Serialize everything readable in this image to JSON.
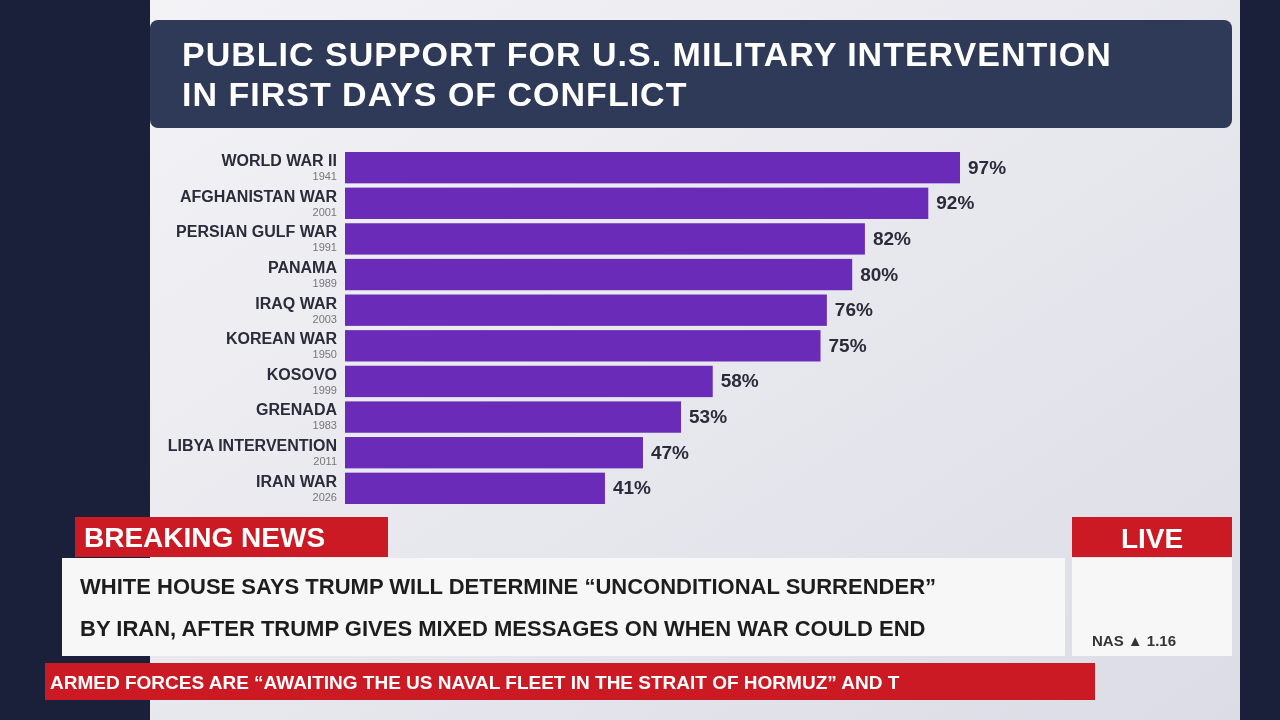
{
  "chart_data": {
    "type": "bar",
    "orientation": "horizontal",
    "title": "PUBLIC SUPPORT FOR U.S. MILITARY INTERVENTION IN FIRST DAYS OF CONFLICT",
    "categories": [
      "WORLD WAR II\n1941",
      "AFGHANISTAN WAR\n2001",
      "PERSIAN GULF WAR\n1991",
      "PANAMA\n1989",
      "IRAQ WAR\n2003",
      "KOREAN WAR\n1950",
      "KOSOVO\n1999",
      "GRENADA\n1983",
      "LIBYA INTERVENTION\n2011",
      "IRAN WAR\n2026"
    ],
    "values": [
      97,
      92,
      82,
      80,
      76,
      75,
      58,
      53,
      47,
      41
    ],
    "value_labels": [
      "97%",
      "92%",
      "82%",
      "80%",
      "76%",
      "75%",
      "58%",
      "53%",
      "47%",
      "41%"
    ],
    "color": "#6a2cb8",
    "annotations": [
      "BREAKING NEWS",
      "WHITE HOUSE SAYS TRUMP WILL DETERMINE “UNCONDITIONAL SURRENDER” BY IRAN, AFTER TRUMP GIVES MIXED MESSAGES ON WHEN WAR COULD END",
      "LIVE",
      "NAS ▲ 1.16",
      "ARMED FORCES ARE “AWAITING THE US NAVAL FLEET IN THE STRAIT OF HORMUZ” AND T"
    ]
  }
}
